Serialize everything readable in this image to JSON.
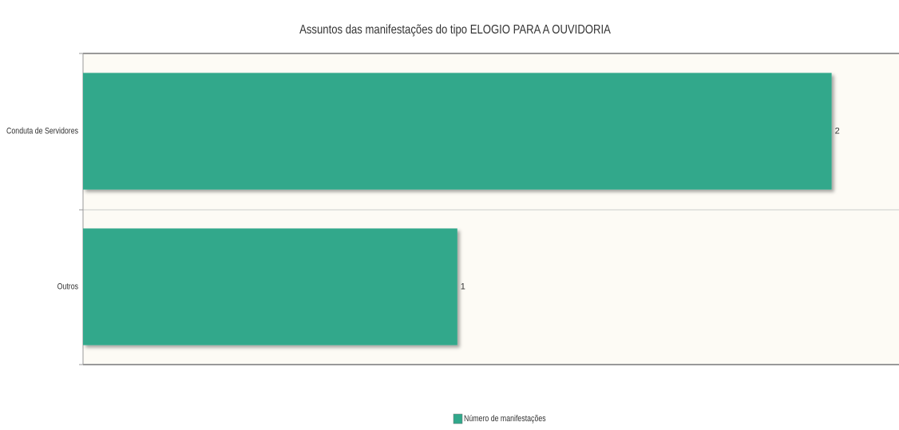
{
  "chart_data": {
    "type": "bar",
    "orientation": "horizontal",
    "title": "Assuntos das manifestações do tipo ELOGIO PARA A OUVIDORIA",
    "categories": [
      "Conduta de Servidores",
      "Outros"
    ],
    "series": [
      {
        "name": "Número de manifestações",
        "color": "#31a88b",
        "values": [
          2,
          1
        ]
      }
    ],
    "xlim": [
      0,
      2.18
    ],
    "legend": "bottom"
  }
}
